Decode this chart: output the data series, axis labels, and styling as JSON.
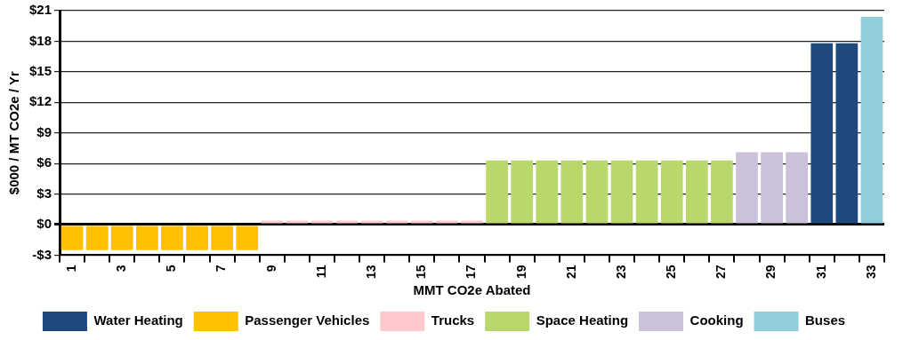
{
  "chart_data": {
    "type": "bar",
    "xlabel": "MMT CO2e Abated",
    "ylabel": "$000 / MT CO2e / Yr",
    "categories": [
      "1",
      null,
      "3",
      null,
      "5",
      null,
      "7",
      null,
      "9",
      null,
      "11",
      null,
      "13",
      null,
      "15",
      null,
      "17",
      null,
      "19",
      null,
      "21",
      null,
      "23",
      null,
      "25",
      null,
      "27",
      null,
      "29",
      null,
      "31",
      null,
      "33"
    ],
    "series": [
      {
        "name": "Water Heating",
        "color": "#1f497d",
        "values": [
          null,
          null,
          null,
          null,
          null,
          null,
          null,
          null,
          null,
          null,
          null,
          null,
          null,
          null,
          null,
          null,
          null,
          null,
          null,
          null,
          null,
          null,
          null,
          null,
          null,
          null,
          null,
          null,
          null,
          null,
          17.8,
          17.8,
          null
        ]
      },
      {
        "name": "Passenger Vehicles",
        "color": "#ffc000",
        "values": [
          -2.5,
          -2.5,
          -2.5,
          -2.5,
          -2.5,
          -2.5,
          -2.5,
          -2.5,
          null,
          null,
          null,
          null,
          null,
          null,
          null,
          null,
          null,
          null,
          null,
          null,
          null,
          null,
          null,
          null,
          null,
          null,
          null,
          null,
          null,
          null,
          null,
          null,
          null
        ]
      },
      {
        "name": "Trucks",
        "color": "#ffc7ce",
        "values": [
          null,
          null,
          null,
          null,
          null,
          null,
          null,
          null,
          0.4,
          0.4,
          0.4,
          0.4,
          0.4,
          0.4,
          0.4,
          0.4,
          0.4,
          null,
          null,
          null,
          null,
          null,
          null,
          null,
          null,
          null,
          null,
          null,
          null,
          null,
          null,
          null,
          null
        ]
      },
      {
        "name": "Space Heating",
        "color": "#b9d86c",
        "values": [
          null,
          null,
          null,
          null,
          null,
          null,
          null,
          null,
          null,
          null,
          null,
          null,
          null,
          null,
          null,
          null,
          null,
          6.3,
          6.3,
          6.3,
          6.3,
          6.3,
          6.3,
          6.3,
          6.3,
          6.3,
          6.3,
          null,
          null,
          null,
          null,
          null,
          null
        ]
      },
      {
        "name": "Cooking",
        "color": "#ccc1da",
        "values": [
          null,
          null,
          null,
          null,
          null,
          null,
          null,
          null,
          null,
          null,
          null,
          null,
          null,
          null,
          null,
          null,
          null,
          null,
          null,
          null,
          null,
          null,
          null,
          null,
          null,
          null,
          null,
          7.1,
          7.1,
          7.1,
          null,
          null,
          null
        ]
      },
      {
        "name": "Buses",
        "color": "#92cddc",
        "values": [
          null,
          null,
          null,
          null,
          null,
          null,
          null,
          null,
          null,
          null,
          null,
          null,
          null,
          null,
          null,
          null,
          null,
          null,
          null,
          null,
          null,
          null,
          null,
          null,
          null,
          null,
          null,
          null,
          null,
          null,
          null,
          null,
          20.4
        ]
      }
    ],
    "ylim": [
      -3,
      21
    ],
    "yticks": [
      {
        "value": -3,
        "label": "-$3"
      },
      {
        "value": 0,
        "label": "$0"
      },
      {
        "value": 3,
        "label": "$3"
      },
      {
        "value": 6,
        "label": "$6"
      },
      {
        "value": 9,
        "label": "$9"
      },
      {
        "value": 12,
        "label": "$12"
      },
      {
        "value": 15,
        "label": "$15"
      },
      {
        "value": 18,
        "label": "$18"
      },
      {
        "value": 21,
        "label": "$21"
      }
    ],
    "grid": "y",
    "legend": "bottom"
  }
}
